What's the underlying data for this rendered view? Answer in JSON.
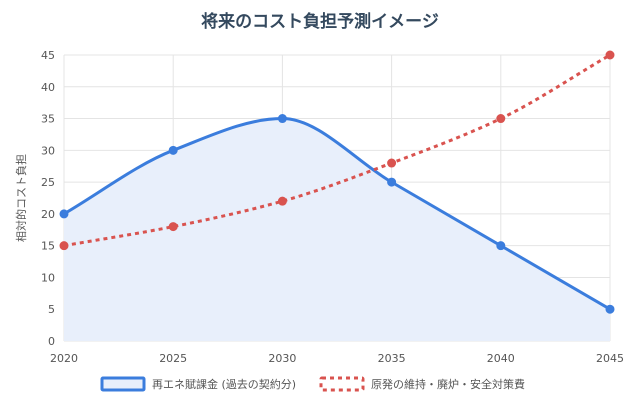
{
  "chart_data": {
    "type": "line",
    "title": "将来のコスト負担予測イメージ",
    "ylabel": "相対的コスト負担",
    "xlabel": "",
    "x": [
      2020,
      2025,
      2030,
      2035,
      2040,
      2045
    ],
    "ylim": [
      0,
      45
    ],
    "yticks": [
      0,
      5,
      10,
      15,
      20,
      25,
      30,
      35,
      40,
      45
    ],
    "grid": true,
    "legend_position": "bottom",
    "series": [
      {
        "name": "再エネ賦課金 (過去の契約分)",
        "values": [
          20,
          30,
          35,
          25,
          15,
          5
        ],
        "color": "#3b7ddd",
        "fill": "#e8effb",
        "style": "solid",
        "smooth": true
      },
      {
        "name": "原発の維持・廃炉・安全対策費",
        "values": [
          15,
          18,
          22,
          28,
          35,
          45
        ],
        "color": "#d9534f",
        "style": "dotted",
        "smooth": true
      }
    ]
  }
}
